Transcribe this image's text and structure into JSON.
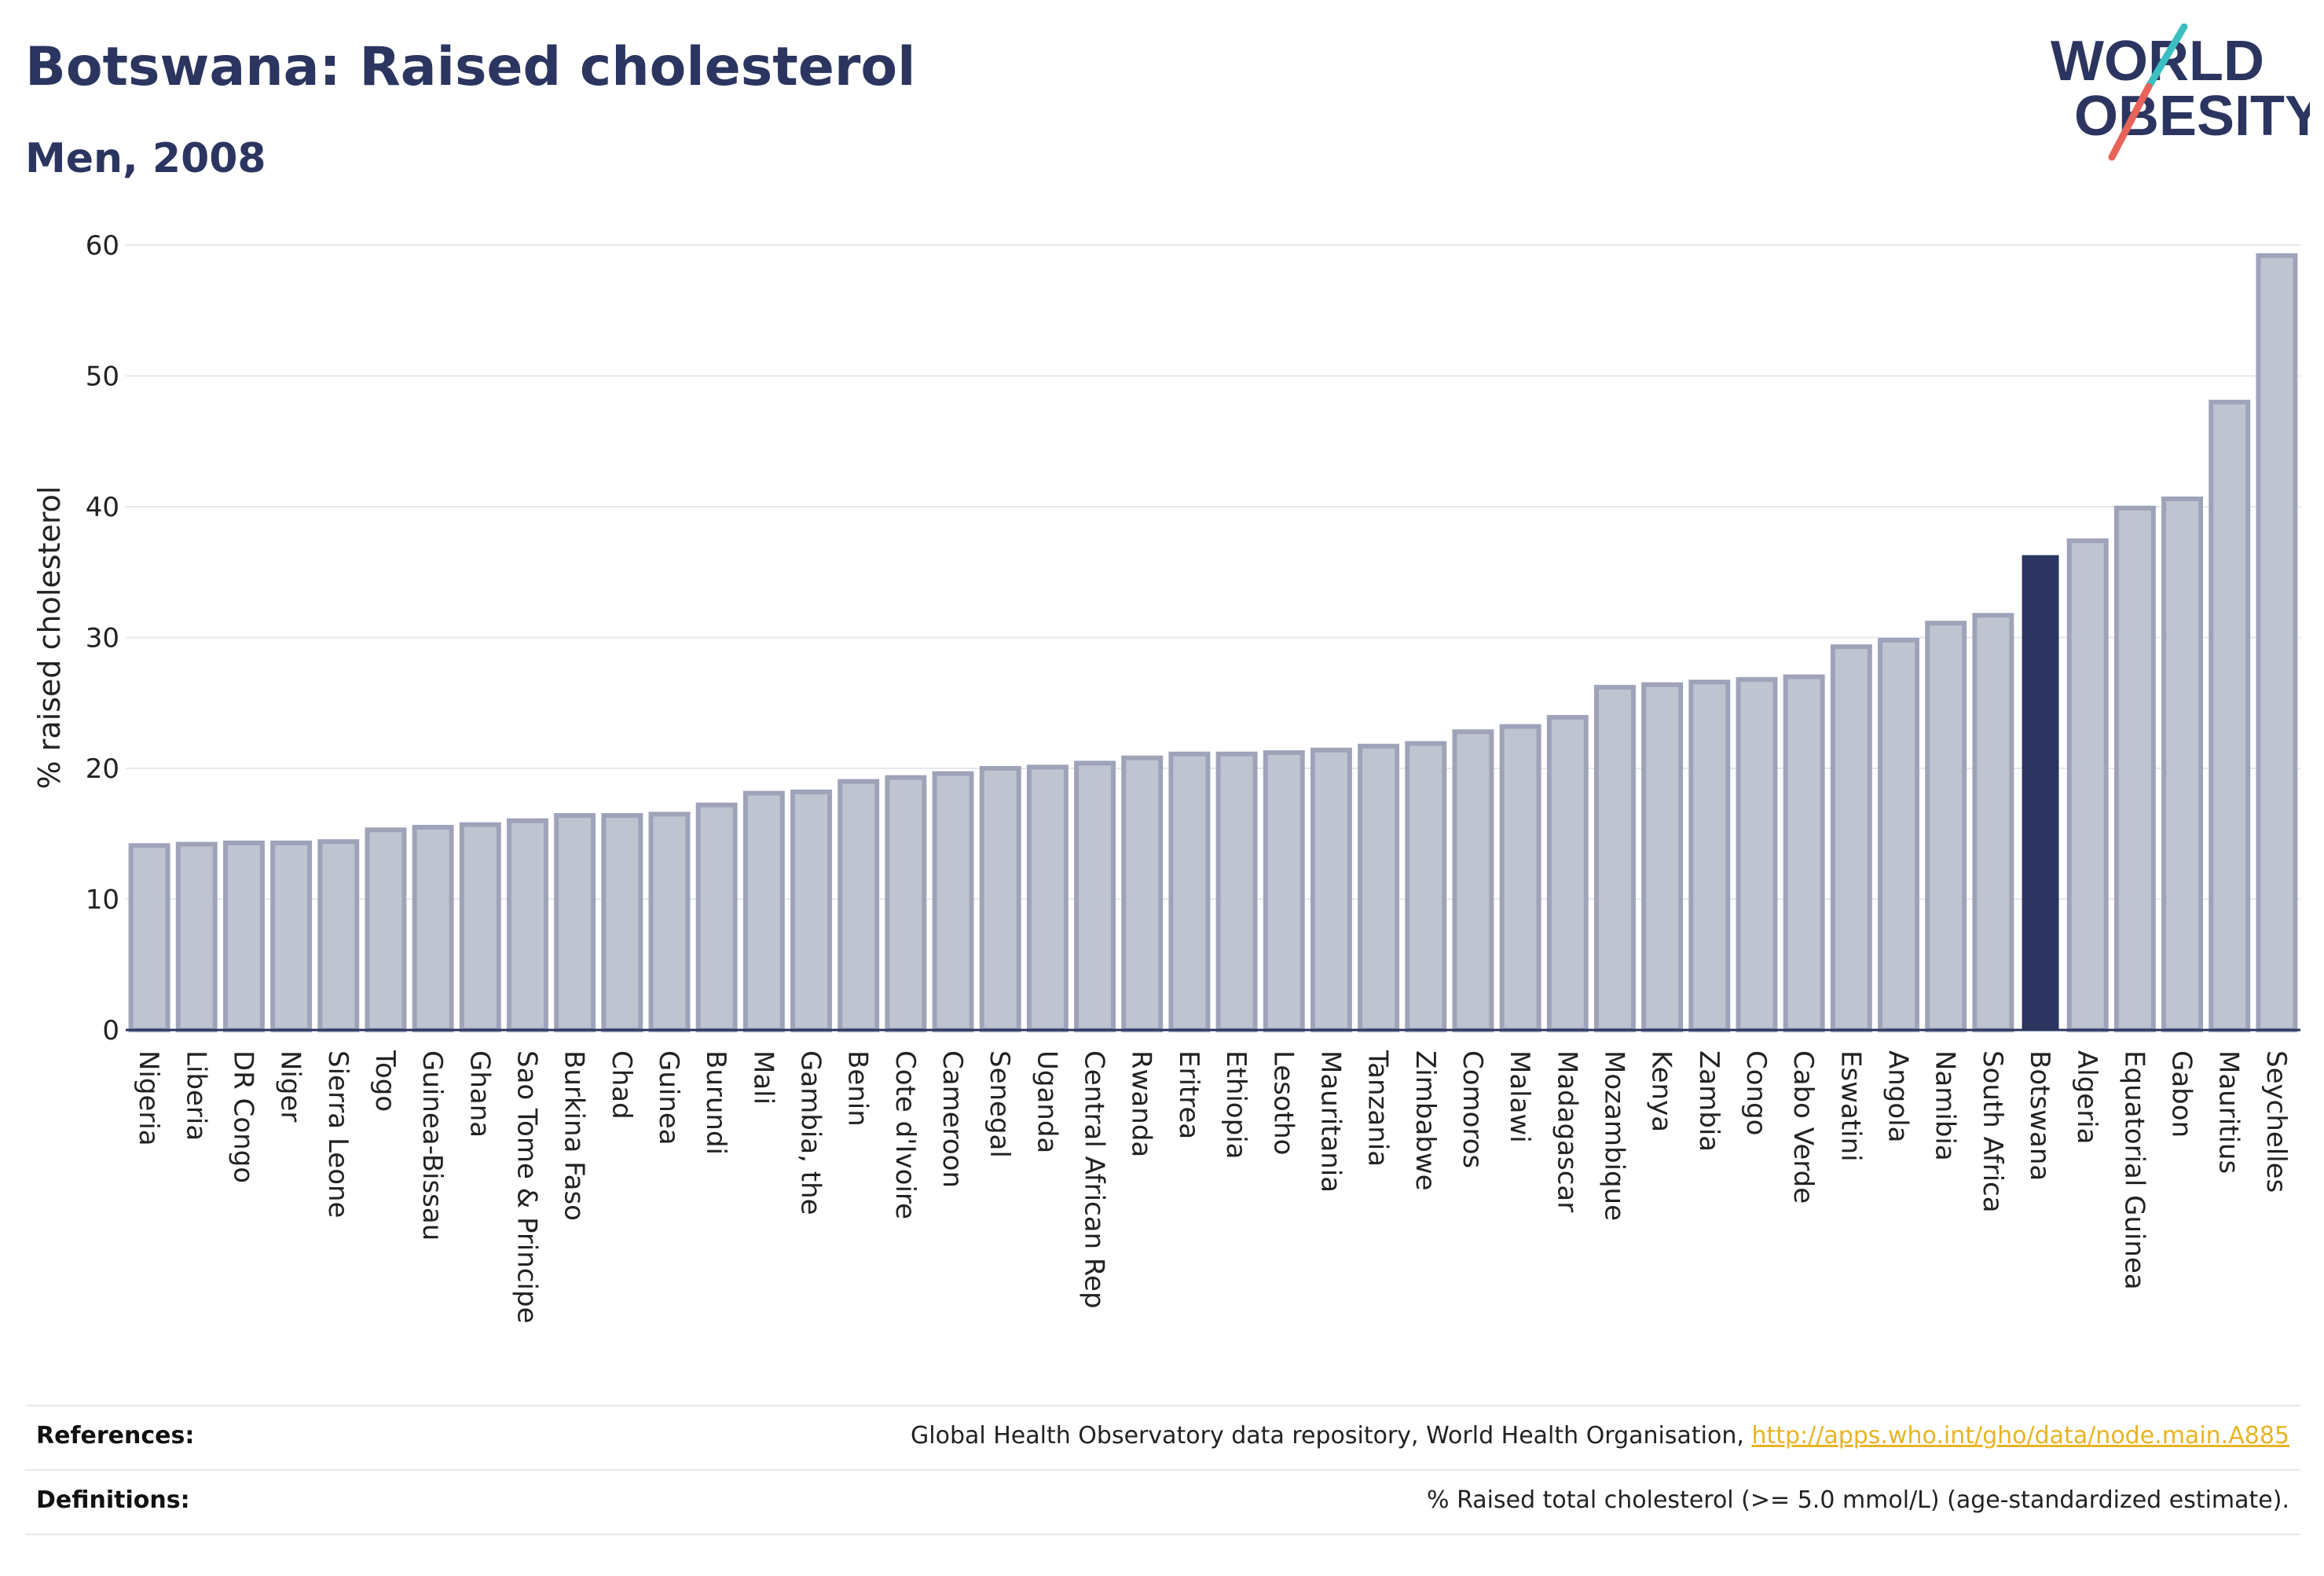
{
  "header": {
    "title": "Botswana: Raised cholesterol",
    "subtitle": "Men, 2008"
  },
  "logo": {
    "line1": "WORLD",
    "line2": "OBESITY",
    "accent_teal": "#3cbfc0",
    "accent_red": "#e8645a",
    "text_color": "#2b3560"
  },
  "colors": {
    "bar_fill": "#c0c4d1",
    "bar_stroke": "#9ea3b9",
    "highlight_fill": "#2b3560",
    "grid": "#e6e8ee",
    "axis": "#2b3560"
  },
  "chart_data": {
    "type": "bar",
    "title": "Botswana: Raised cholesterol",
    "subtitle": "Men, 2008",
    "xlabel": "",
    "ylabel": "% raised cholesterol",
    "ylim": [
      0,
      60
    ],
    "yticks": [
      0,
      10,
      20,
      30,
      40,
      50,
      60
    ],
    "grid": true,
    "highlight": "Botswana",
    "categories": [
      "Nigeria",
      "Liberia",
      "DR Congo",
      "Niger",
      "Sierra Leone",
      "Togo",
      "Guinea-Bissau",
      "Ghana",
      "Sao Tome & Principe",
      "Burkina Faso",
      "Chad",
      "Guinea",
      "Burundi",
      "Mali",
      "Gambia, the",
      "Benin",
      "Cote d'Ivoire",
      "Cameroon",
      "Senegal",
      "Uganda",
      "Central African Rep",
      "Rwanda",
      "Eritrea",
      "Ethiopia",
      "Lesotho",
      "Mauritania",
      "Tanzania",
      "Zimbabwe",
      "Comoros",
      "Malawi",
      "Madagascar",
      "Mozambique",
      "Kenya",
      "Zambia",
      "Congo",
      "Cabo Verde",
      "Eswatini",
      "Angola",
      "Namibia",
      "South Africa",
      "Botswana",
      "Algeria",
      "Equatorial Guinea",
      "Gabon",
      "Mauritius",
      "Seychelles"
    ],
    "values": [
      14.1,
      14.2,
      14.3,
      14.3,
      14.4,
      15.3,
      15.5,
      15.7,
      16.0,
      16.4,
      16.4,
      16.5,
      17.2,
      18.1,
      18.2,
      19.0,
      19.3,
      19.6,
      20.0,
      20.1,
      20.4,
      20.8,
      21.1,
      21.1,
      21.2,
      21.4,
      21.7,
      21.9,
      22.8,
      23.2,
      23.9,
      26.2,
      26.4,
      26.6,
      26.8,
      27.0,
      29.3,
      29.8,
      31.1,
      31.7,
      36.3,
      37.4,
      39.9,
      40.6,
      48.0,
      59.2
    ]
  },
  "footer": {
    "references_label": "References:",
    "references_text": "Global Health Observatory data repository, World Health Organisation, ",
    "references_link": "http://apps.who.int/gho/data/node.main.A885",
    "definitions_label": "Definitions:",
    "definitions_text": "% Raised total cholesterol (>= 5.0 mmol/L) (age-standardized estimate)."
  }
}
